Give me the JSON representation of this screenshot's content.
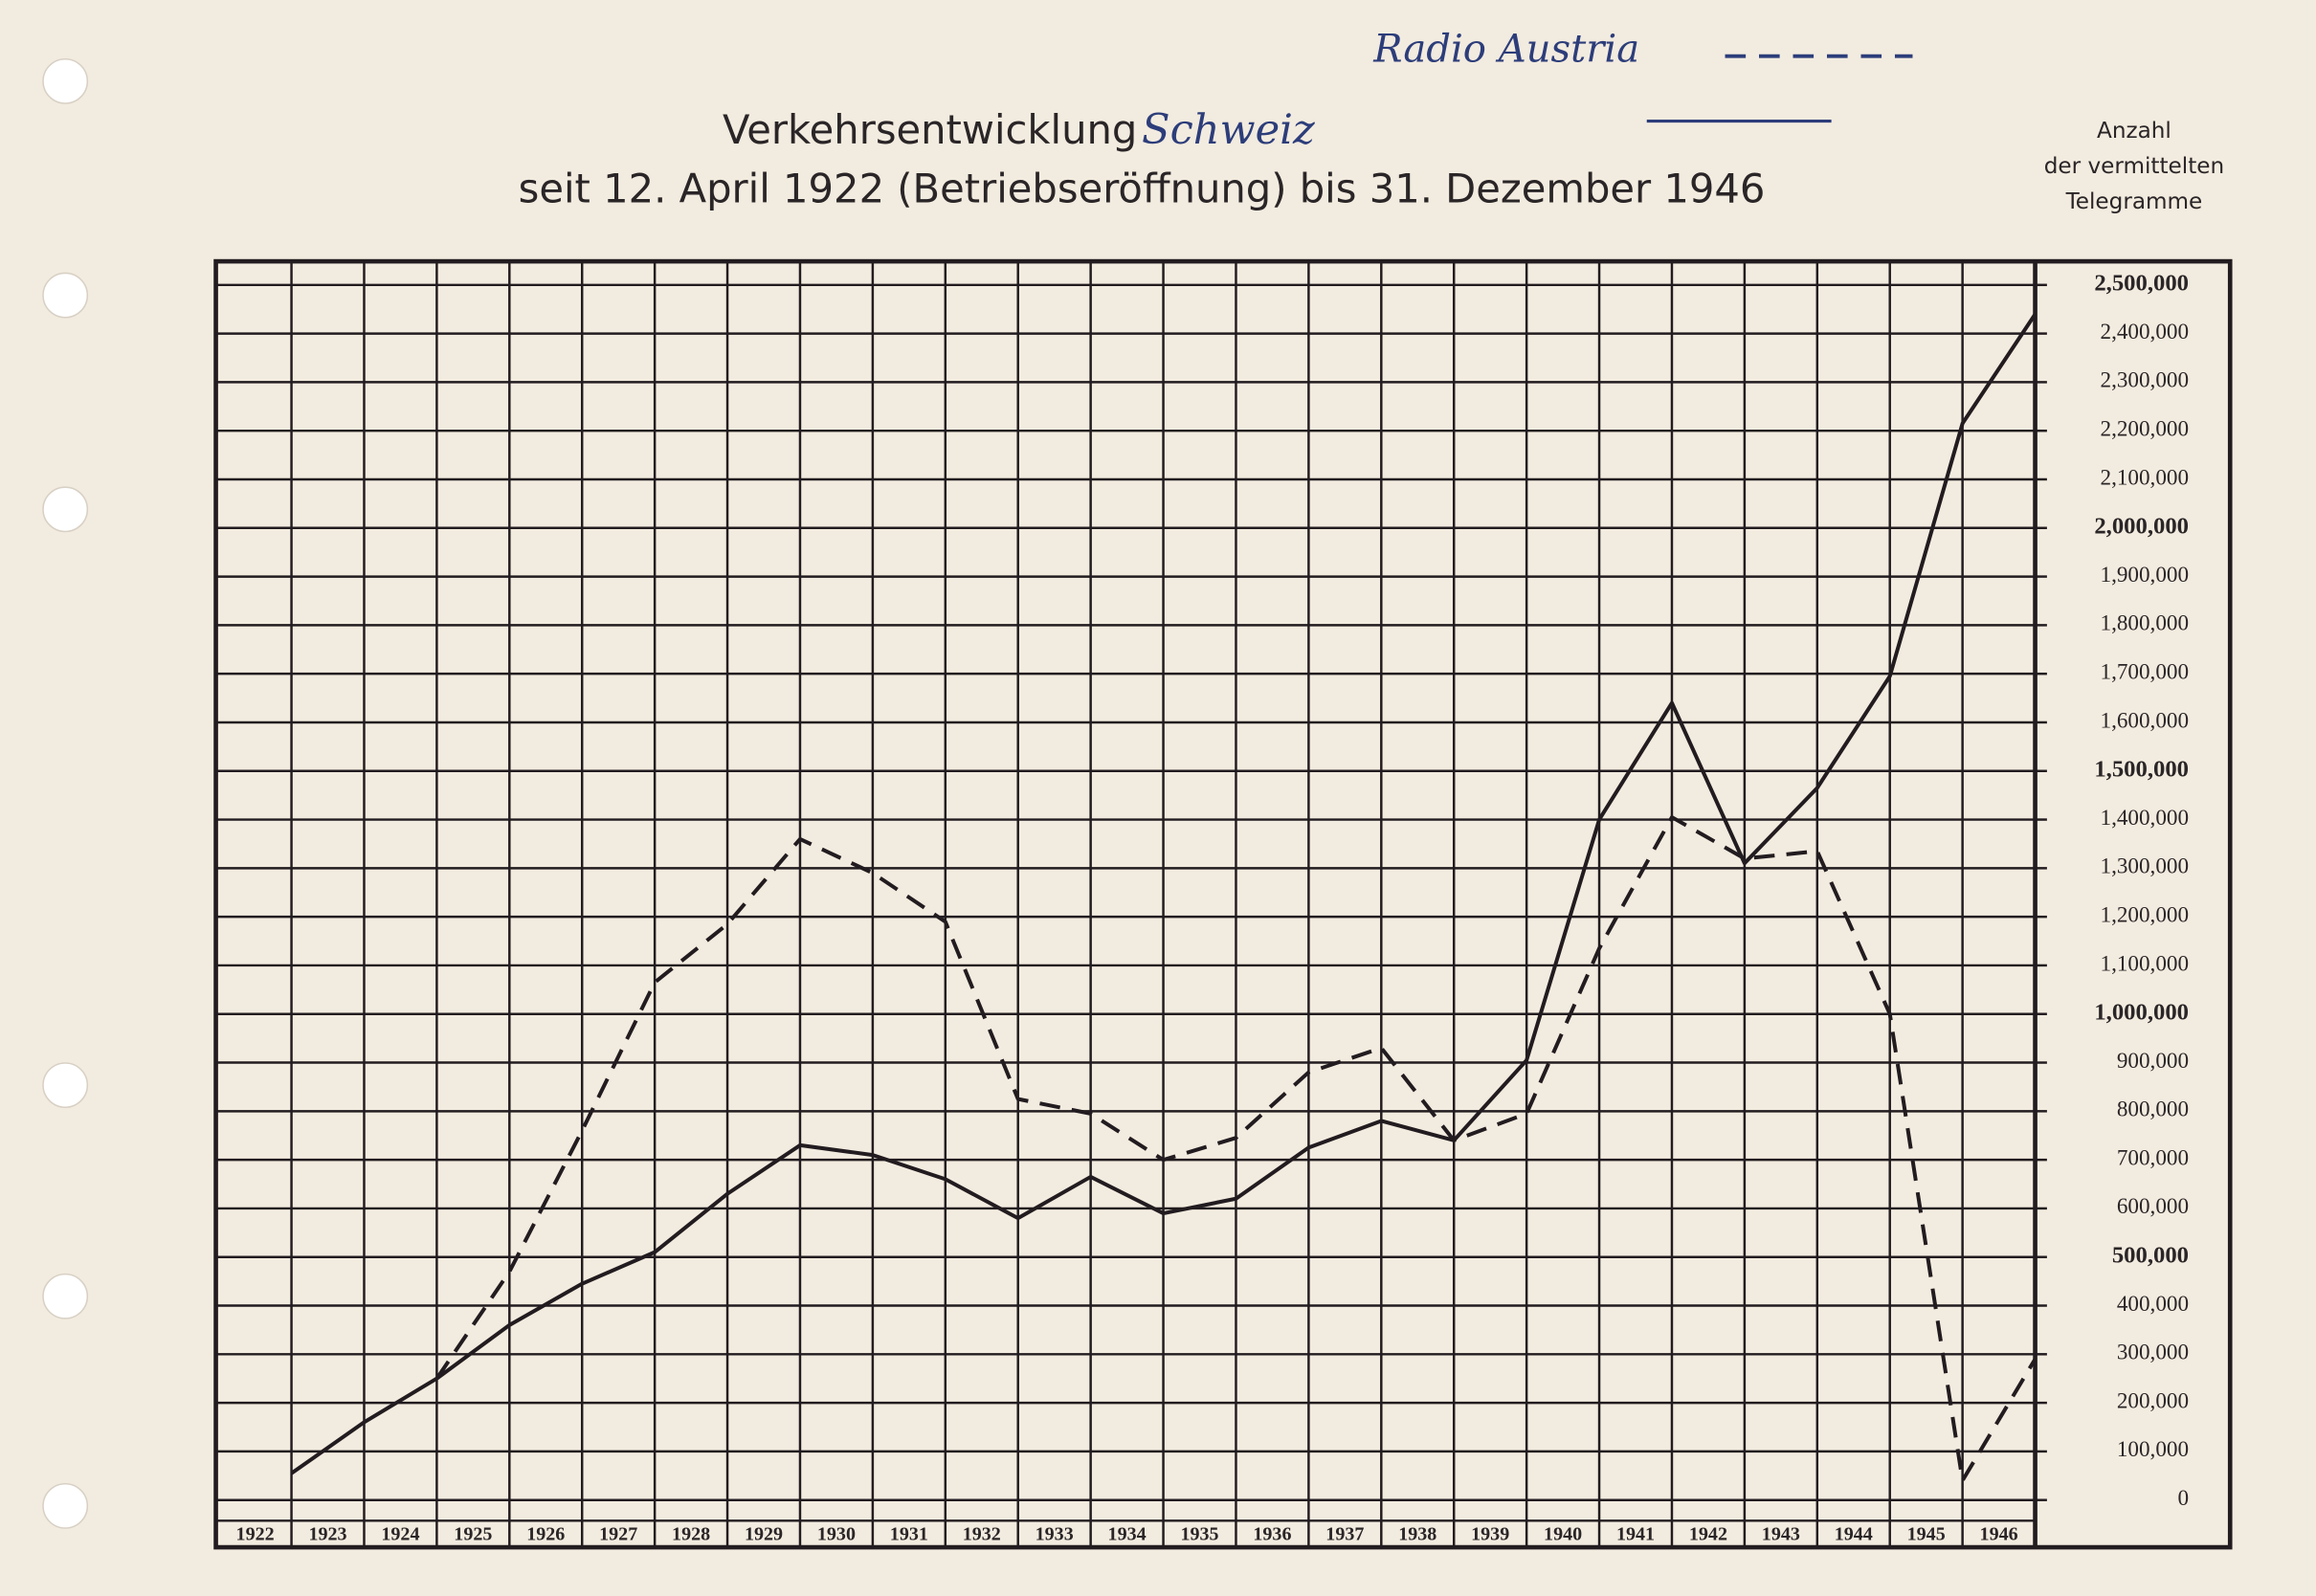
{
  "chart_data": {
    "type": "line",
    "title": "Verkehrsentwicklung",
    "subtitle": "seit 12. April 1922 (Betriebseröffnung) bis 31. Dezember 1946",
    "y_label": [
      "Anzahl",
      "der vermittelten",
      "Telegramme"
    ],
    "categories": [
      "1922",
      "1923",
      "1924",
      "1925",
      "1926",
      "1927",
      "1928",
      "1929",
      "1930",
      "1931",
      "1932",
      "1933",
      "1934",
      "1935",
      "1936",
      "1937",
      "1938",
      "1939",
      "1940",
      "1941",
      "1942",
      "1943",
      "1944",
      "1945",
      "1946"
    ],
    "series": [
      {
        "name": "Schweiz",
        "color": "#221c20",
        "dash": false,
        "values": [
          55000,
          160000,
          250000,
          360000,
          445000,
          510000,
          630000,
          730000,
          710000,
          660000,
          580000,
          665000,
          590000,
          620000,
          725000,
          780000,
          740000,
          905000,
          1400000,
          1640000,
          1310000,
          1465000,
          1695000,
          2215000,
          2440000
        ]
      },
      {
        "name": "Radio Austria",
        "color": "#221c20",
        "dash": true,
        "values": [
          null,
          null,
          250000,
          470000,
          760000,
          1065000,
          1185000,
          1360000,
          1290000,
          1190000,
          825000,
          795000,
          700000,
          745000,
          880000,
          930000,
          740000,
          795000,
          1135000,
          1405000,
          1320000,
          1335000,
          1000000,
          40000,
          290000
        ]
      }
    ],
    "ylim": [
      0,
      2500000
    ],
    "yticks": [
      0,
      {
        "value": 100000,
        "label": "100,000"
      },
      {
        "value": 200000,
        "label": "200,000"
      },
      {
        "value": 300000,
        "label": "300,000"
      },
      {
        "value": 400000,
        "label": "400,000"
      },
      {
        "value": 500000,
        "label": "500,000"
      },
      {
        "value": 600000,
        "label": "600,000"
      },
      {
        "value": 700000,
        "label": "700,000"
      },
      {
        "value": 800000,
        "label": "800,000"
      },
      {
        "value": 900000,
        "label": "900,000"
      },
      {
        "value": 1000000,
        "label": "1,000,000"
      },
      {
        "value": 1100000,
        "label": "1,100,000"
      },
      {
        "value": 1200000,
        "label": "1,200,000"
      },
      {
        "value": 1300000,
        "label": "1,300,000"
      },
      {
        "value": 1400000,
        "label": "1,400,000"
      },
      {
        "value": 1500000,
        "label": "1,500,000"
      },
      {
        "value": 1600000,
        "label": "1,600,000"
      },
      {
        "value": 1700000,
        "label": "1,700,000"
      },
      {
        "value": 1800000,
        "label": "1,800,000"
      },
      {
        "value": 1900000,
        "label": "1,900,000"
      },
      {
        "value": 2000000,
        "label": "2,000,000"
      },
      {
        "value": 2100000,
        "label": "2,100,000"
      },
      {
        "value": 2200000,
        "label": "2,200,000"
      },
      {
        "value": 2300000,
        "label": "2,300,000"
      },
      {
        "value": 2400000,
        "label": "2,400,000"
      },
      {
        "value": 2500000,
        "label": "2,500,000"
      }
    ],
    "grid": true
  }
}
